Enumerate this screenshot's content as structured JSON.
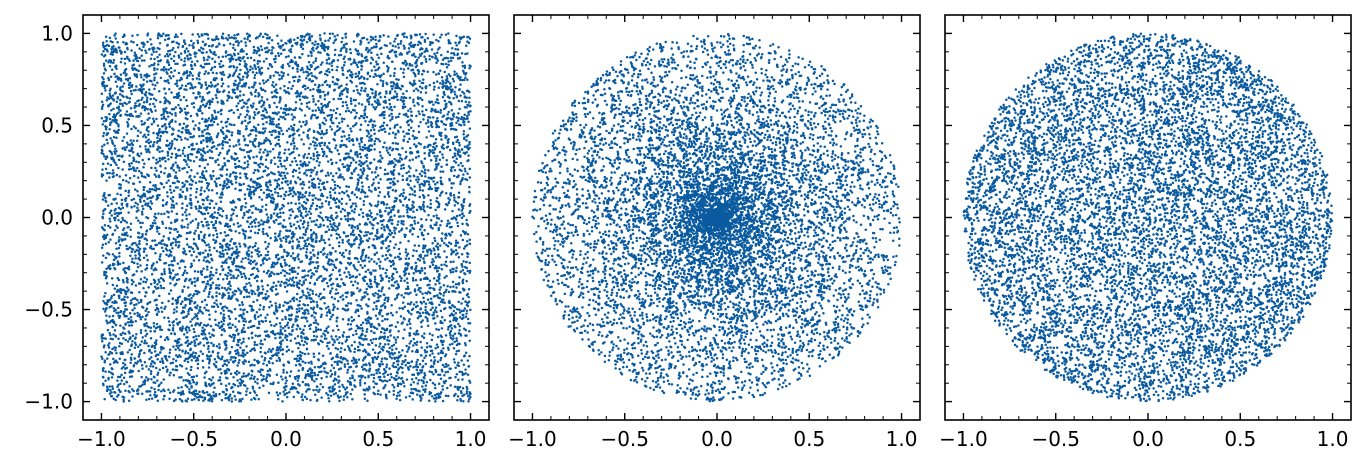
{
  "chart_data": [
    {
      "type": "scatter",
      "distribution": "uniform-square",
      "n_points": 9000,
      "xlim": [
        -1.1,
        1.1
      ],
      "ylim": [
        -1.1,
        1.1
      ],
      "x_ticks": [
        -1.0,
        -0.5,
        0.0,
        0.5,
        1.0
      ],
      "x_tick_labels": [
        "−1.0",
        "−0.5",
        "0.0",
        "0.5",
        "1.0"
      ],
      "y_ticks": [
        -1.0,
        -0.5,
        0.0,
        0.5,
        1.0
      ],
      "y_tick_labels": [
        "−1.0",
        "−0.5",
        "0.0",
        "0.5",
        "1.0"
      ],
      "show_y_tick_labels": true,
      "marker_color": "#0a5aa0",
      "grid": false
    },
    {
      "type": "scatter",
      "distribution": "disk-uniform-radius",
      "n_points": 9000,
      "xlim": [
        -1.1,
        1.1
      ],
      "ylim": [
        -1.1,
        1.1
      ],
      "x_ticks": [
        -1.0,
        -0.5,
        0.0,
        0.5,
        1.0
      ],
      "x_tick_labels": [
        "−1.0",
        "−0.5",
        "0.0",
        "0.5",
        "1.0"
      ],
      "y_ticks": [
        -1.0,
        -0.5,
        0.0,
        0.5,
        1.0
      ],
      "y_tick_labels": [],
      "show_y_tick_labels": false,
      "marker_color": "#0a5aa0",
      "grid": false
    },
    {
      "type": "scatter",
      "distribution": "disk-uniform-area",
      "n_points": 9000,
      "xlim": [
        -1.1,
        1.1
      ],
      "ylim": [
        -1.1,
        1.1
      ],
      "x_ticks": [
        -1.0,
        -0.5,
        0.0,
        0.5,
        1.0
      ],
      "x_tick_labels": [
        "−1.0",
        "−0.5",
        "0.0",
        "0.5",
        "1.0"
      ],
      "y_ticks": [
        -1.0,
        -0.5,
        0.0,
        0.5,
        1.0
      ],
      "y_tick_labels": [],
      "show_y_tick_labels": false,
      "marker_color": "#0a5aa0",
      "grid": false
    }
  ]
}
